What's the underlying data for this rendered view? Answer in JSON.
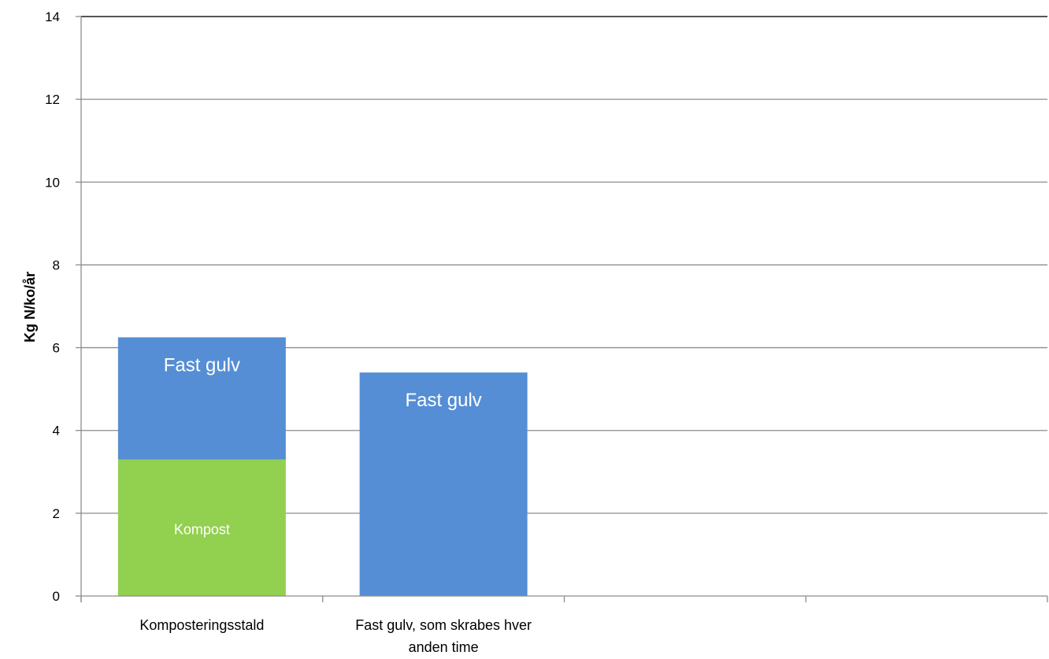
{
  "chart_data": {
    "type": "bar",
    "stacked": true,
    "title": "",
    "xlabel": "",
    "ylabel": "Kg N/ko/år",
    "ylim": [
      0,
      14
    ],
    "yticks": [
      0,
      2,
      4,
      6,
      8,
      10,
      12,
      14
    ],
    "grid": true,
    "legend": "none",
    "slot_count": 4,
    "categories": [
      [
        "Komposteringsstald"
      ],
      [
        "Fast gulv, som skrabes hver",
        "anden time"
      ]
    ],
    "series": [
      {
        "label": "Kompost",
        "color": "#92d050",
        "values": [
          3.3,
          0
        ]
      },
      {
        "label": "Fast gulv",
        "color": "#558ed5",
        "values": [
          2.95,
          5.4
        ]
      }
    ]
  }
}
